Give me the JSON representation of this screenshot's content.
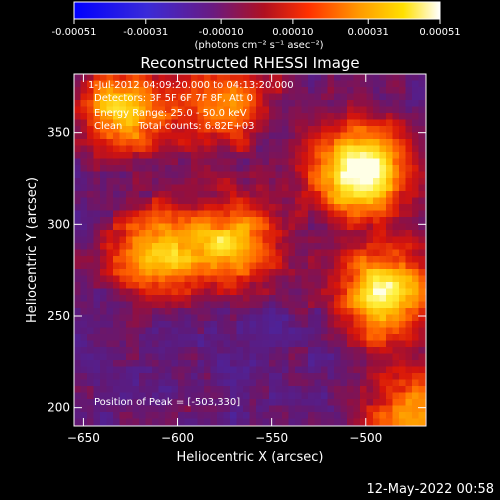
{
  "colorbar": {
    "min": -0.00051,
    "max": 0.00051,
    "tick_labels": [
      "-0.00051",
      "-0.00031",
      "-0.00010",
      "0.00010",
      "0.00031",
      "0.00051"
    ],
    "unit_label": "(photons cm⁻² s⁻¹ asec⁻²)"
  },
  "chart_data": {
    "type": "heatmap",
    "title": "Reconstructed RHESSI Image",
    "xlabel": "Heliocentric X (arcsec)",
    "ylabel": "Heliocentric Y (arcsec)",
    "xlim": [
      -655,
      -468
    ],
    "ylim": [
      190,
      382
    ],
    "x_ticks": [
      -650,
      -600,
      -550,
      -500
    ],
    "y_ticks": [
      200,
      250,
      300,
      350
    ],
    "x_tick_labels": [
      "−650",
      "−600",
      "−550",
      "−500"
    ],
    "y_tick_labels": [
      "200",
      "250",
      "300",
      "350"
    ],
    "colormap": "hot-on-purple (blue → purple → red → orange → yellow → white)",
    "colors": [
      "#0000ff",
      "#5a2aa8",
      "#6a1a80",
      "#d01010",
      "#ff7a00",
      "#ffd000",
      "#ffffff"
    ],
    "annotations": [
      "1-Jul-2012 04:09:20.000 to 04:13:20.000",
      "Detectors: 3F 5F 6F 7F 8F, Att 0",
      "Energy Range: 25.0 - 50.0 keV",
      "Clean     Total counts: 6.82E+03",
      "Position of Peak = [-503,330]"
    ],
    "peak": [
      -503,
      330
    ],
    "sources": [
      {
        "x": -503,
        "y": 330,
        "intensity": 1.0
      },
      {
        "x": -490,
        "y": 262,
        "intensity": 0.85
      },
      {
        "x": -612,
        "y": 285,
        "intensity": 0.7
      },
      {
        "x": -570,
        "y": 290,
        "intensity": 0.65
      },
      {
        "x": -630,
        "y": 362,
        "intensity": 0.7
      },
      {
        "x": -575,
        "y": 368,
        "intensity": 0.55
      },
      {
        "x": -475,
        "y": 196,
        "intensity": 0.6
      }
    ]
  },
  "timestamp": "12‑May‑2022 00:58"
}
